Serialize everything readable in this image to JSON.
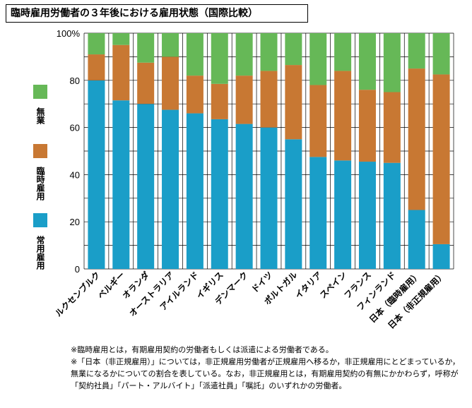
{
  "title": "臨時雇用労働者の３年後における雇用状態（国際比較）",
  "chart_data": {
    "type": "bar",
    "stacked": true,
    "title": "臨時雇用労働者の３年後における雇用状態（国際比較）",
    "categories": [
      "ルクセンブルク",
      "ベルギー",
      "オランダ",
      "オーストラリア",
      "アイルランド",
      "イギリス",
      "デンマーク",
      "ドイツ",
      "ポルトガル",
      "イタリア",
      "スペイン",
      "フランス",
      "フィンランド",
      "日本（臨時雇用）",
      "日本（非正規雇用）"
    ],
    "series": [
      {
        "name": "常用雇用",
        "color": "#1a9ec8",
        "values": [
          80,
          71.5,
          70,
          67.5,
          66,
          63.5,
          61.5,
          60,
          55,
          47.5,
          46,
          45.5,
          45,
          25,
          10.5
        ]
      },
      {
        "name": "臨時雇用",
        "color": "#c87833",
        "values": [
          11,
          23.5,
          17.5,
          22.5,
          16,
          15,
          20.5,
          24,
          31.5,
          30.5,
          38,
          30.5,
          30,
          60,
          72
        ]
      },
      {
        "name": "無業",
        "color": "#66b857",
        "values": [
          9,
          5,
          12.5,
          10,
          18,
          21.5,
          18,
          16,
          13.5,
          22,
          16,
          24,
          25,
          15,
          17.5
        ]
      }
    ],
    "ylim": [
      0,
      100
    ],
    "yticks": [
      "0",
      "20",
      "40",
      "60",
      "80",
      "100%"
    ],
    "grid": true,
    "legend": "left"
  },
  "notes": [
    "※臨時雇用とは，有期雇用契約の労働者もしくは派遣による労働者である。",
    "※「日本（非正規雇用）」については，非正規雇用労働者が正規雇用へ移るか，非正規雇用にとどまっているか，無業になるかについての割合を表している。なお，非正規雇用とは，有期雇用契約の有無にかかわらず，呼称が「契約社員」「パート・アルバイト」「派遣社員」「嘱託」のいずれかの労働者。"
  ]
}
